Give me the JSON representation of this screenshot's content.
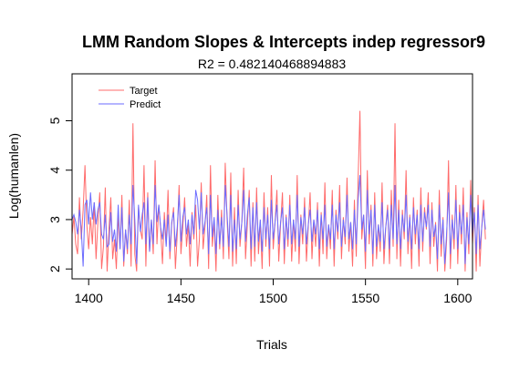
{
  "chart_data": {
    "type": "line",
    "title": "LMM Random Slopes & Intercepts indep regressor9",
    "subtitle": "R2 = 0.482140468894883",
    "xlabel": "Trials",
    "ylabel": "Log(humanlen)",
    "xlim": [
      1391,
      1608
    ],
    "ylim": [
      1.8,
      5.95
    ],
    "xticks": [
      1400,
      1450,
      1500,
      1550,
      1600
    ],
    "yticks": [
      2,
      3,
      4,
      5
    ],
    "legend_position": "top-left",
    "x_start": 1391,
    "series": [
      {
        "name": "Target",
        "color": "#ff6b6b",
        "values": [
          2.7,
          3.05,
          2.5,
          2.3,
          3.45,
          2.6,
          3.2,
          4.1,
          2.9,
          2.4,
          3.05,
          2.5,
          3.35,
          2.2,
          2.95,
          3.55,
          2.0,
          2.45,
          3.65,
          1.95,
          2.8,
          3.45,
          2.2,
          2.6,
          2.0,
          3.1,
          2.4,
          3.5,
          2.05,
          2.8,
          2.3,
          3.4,
          2.05,
          4.95,
          2.3,
          1.95,
          3.25,
          2.8,
          2.6,
          4.1,
          2.05,
          3.55,
          2.35,
          3.0,
          2.3,
          4.2,
          2.5,
          3.3,
          2.8,
          2.1,
          3.15,
          2.5,
          3.6,
          2.2,
          2.9,
          3.25,
          2.0,
          2.7,
          3.7,
          2.3,
          2.85,
          3.45,
          2.45,
          2.9,
          2.05,
          3.15,
          2.6,
          3.3,
          2.05,
          2.6,
          3.75,
          2.4,
          2.85,
          3.5,
          2.0,
          4.1,
          2.45,
          2.95,
          1.95,
          3.5,
          2.4,
          3.2,
          2.2,
          4.15,
          3.0,
          2.2,
          3.95,
          2.05,
          3.25,
          2.1,
          3.6,
          2.45,
          2.95,
          4.05,
          2.2,
          2.9,
          3.6,
          2.05,
          3.35,
          2.15,
          3.65,
          2.3,
          2.95,
          2.0,
          3.55,
          2.45,
          3.25,
          2.05,
          3.9,
          2.4,
          2.95,
          3.6,
          2.15,
          2.9,
          3.55,
          2.1,
          3.1,
          2.45,
          3.5,
          2.15,
          3.0,
          2.35,
          3.9,
          2.1,
          3.1,
          2.5,
          3.45,
          2.15,
          2.85,
          3.55,
          2.2,
          3.0,
          2.45,
          3.35,
          2.05,
          3.15,
          2.3,
          3.75,
          2.2,
          2.9,
          2.4,
          3.6,
          2.05,
          3.2,
          2.6,
          3.7,
          2.2,
          3.05,
          2.5,
          3.85,
          2.35,
          2.95,
          2.05,
          3.4,
          2.25,
          3.8,
          5.2,
          2.6,
          3.1,
          2.0,
          4.0,
          2.5,
          3.3,
          2.05,
          3.55,
          2.2,
          2.9,
          2.35,
          3.75,
          2.1,
          2.85,
          3.3,
          2.1,
          3.6,
          2.45,
          4.95,
          2.2,
          3.4,
          2.05,
          3.2,
          2.6,
          4.0,
          2.3,
          3.1,
          2.0,
          3.45,
          2.5,
          3.2,
          2.05,
          3.65,
          2.35,
          3.25,
          2.8,
          3.55,
          2.1,
          3.35,
          2.45,
          2.95,
          1.95,
          3.6,
          2.25,
          3.05,
          1.95,
          2.6,
          4.2,
          2.0,
          3.1,
          2.4,
          3.7,
          2.1,
          3.3,
          2.5,
          3.65,
          1.95,
          3.15,
          2.3,
          3.8,
          2.5,
          3.25,
          1.95,
          3.5,
          2.05,
          2.85,
          3.4,
          2.6
        ]
      },
      {
        "name": "Predict",
        "color": "#6b6bff",
        "values": [
          3.0,
          3.1,
          2.95,
          2.7,
          3.2,
          2.8,
          2.05,
          3.3,
          3.4,
          2.9,
          3.55,
          3.0,
          3.35,
          2.9,
          3.2,
          3.35,
          2.7,
          2.6,
          3.1,
          2.45,
          2.5,
          3.15,
          2.55,
          2.8,
          2.35,
          3.3,
          2.4,
          3.25,
          2.15,
          2.8,
          2.4,
          3.1,
          2.5,
          3.7,
          3.0,
          2.1,
          3.3,
          2.75,
          3.1,
          3.35,
          2.5,
          3.45,
          2.35,
          3.0,
          2.5,
          3.7,
          2.95,
          3.3,
          2.85,
          2.6,
          3.0,
          2.45,
          3.1,
          2.35,
          2.95,
          3.15,
          2.45,
          2.85,
          3.5,
          2.55,
          3.05,
          3.25,
          2.7,
          3.0,
          2.5,
          3.1,
          2.7,
          3.6,
          3.4,
          2.8,
          3.55,
          2.7,
          2.95,
          3.25,
          2.3,
          3.5,
          2.65,
          3.05,
          2.3,
          3.2,
          2.5,
          3.05,
          2.45,
          3.7,
          3.1,
          2.45,
          3.5,
          2.35,
          3.0,
          2.4,
          3.3,
          2.6,
          2.95,
          3.6,
          2.55,
          3.1,
          3.45,
          2.4,
          3.25,
          2.45,
          3.35,
          2.55,
          3.0,
          2.35,
          3.25,
          2.6,
          3.1,
          2.4,
          3.4,
          2.6,
          2.95,
          3.3,
          2.5,
          2.95,
          3.25,
          2.4,
          3.05,
          2.6,
          3.3,
          2.5,
          3.0,
          2.6,
          3.5,
          2.45,
          3.05,
          2.7,
          3.25,
          2.5,
          2.9,
          3.2,
          2.55,
          3.0,
          2.7,
          3.2,
          2.4,
          3.1,
          2.6,
          3.3,
          2.45,
          2.9,
          2.6,
          3.3,
          2.4,
          3.1,
          2.75,
          3.35,
          2.45,
          3.0,
          2.65,
          3.5,
          2.6,
          2.95,
          2.4,
          3.2,
          2.5,
          3.4,
          3.9,
          2.8,
          3.1,
          2.35,
          3.6,
          2.7,
          3.2,
          2.3,
          3.3,
          2.45,
          2.9,
          2.55,
          3.35,
          2.4,
          2.85,
          3.2,
          2.4,
          3.3,
          2.6,
          3.7,
          2.5,
          3.2,
          2.4,
          3.1,
          2.75,
          3.5,
          2.55,
          3.05,
          2.4,
          3.25,
          2.7,
          3.1,
          2.4,
          3.3,
          2.55,
          3.15,
          2.85,
          3.3,
          2.45,
          3.2,
          2.65,
          2.9,
          2.2,
          3.3,
          2.5,
          3.0,
          2.1,
          2.75,
          3.55,
          2.3,
          3.0,
          2.6,
          3.4,
          2.4,
          3.15,
          2.7,
          3.3,
          2.1,
          3.05,
          2.5,
          3.5,
          2.7,
          3.15,
          2.3,
          3.3,
          2.4,
          2.85,
          3.2,
          2.8
        ]
      }
    ]
  }
}
